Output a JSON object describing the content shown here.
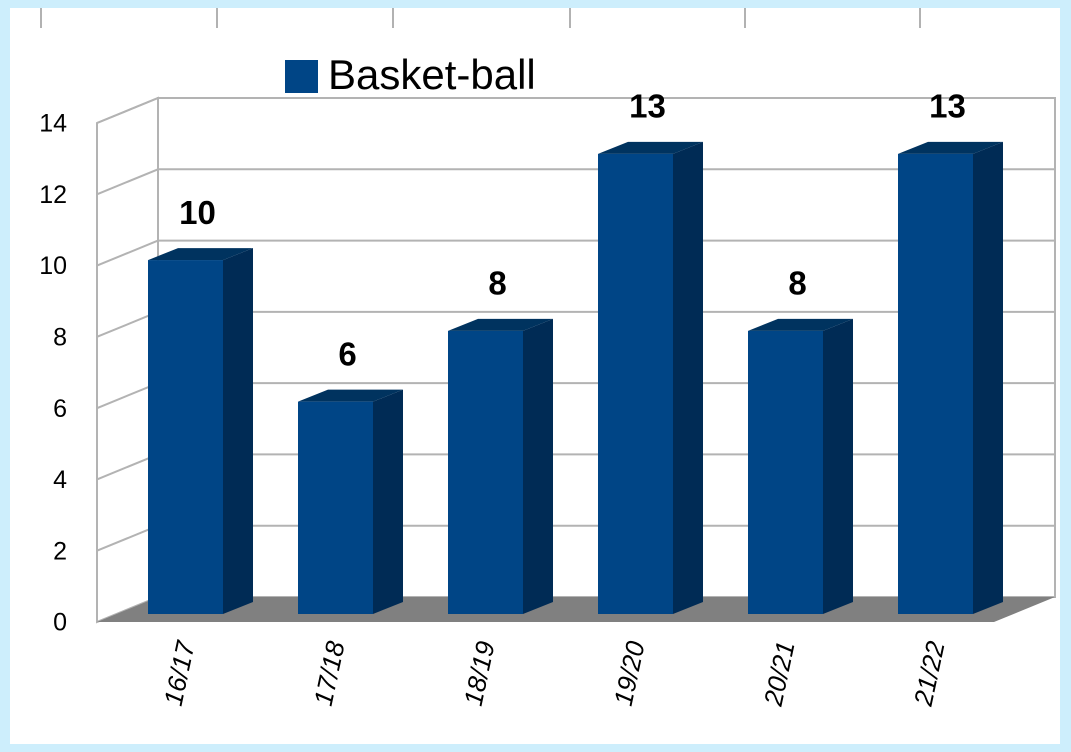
{
  "chart_data": {
    "type": "bar3d",
    "categories": [
      "16/17",
      "17/18",
      "18/19",
      "19/20",
      "20/21",
      "21/22"
    ],
    "series": [
      {
        "name": "Basket-ball",
        "color": "#004586",
        "values": [
          10,
          6,
          8,
          13,
          8,
          13
        ]
      }
    ],
    "ylim": [
      0,
      14
    ],
    "yticks": [
      0,
      2,
      4,
      6,
      8,
      10,
      12,
      14
    ],
    "grid": true,
    "legend": "top",
    "data_labels": true
  }
}
